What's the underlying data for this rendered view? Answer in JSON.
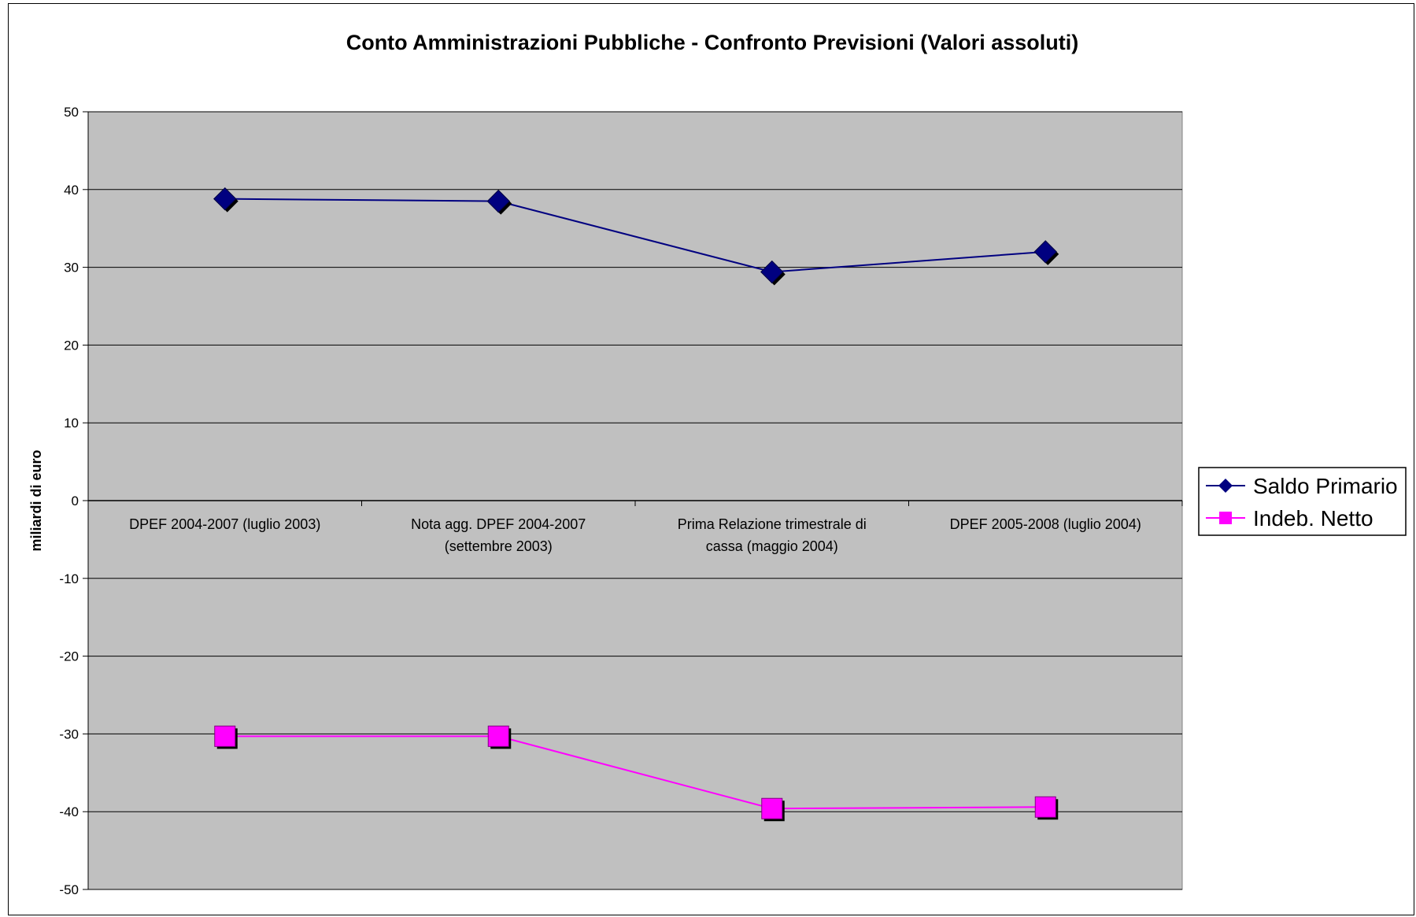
{
  "chart_data": {
    "type": "line",
    "title": "Conto Amministrazioni Pubbliche - Confronto Previsioni (Valori assoluti)",
    "xlabel": "",
    "ylabel": "miliardi di euro",
    "ylim": [
      -50,
      50
    ],
    "yticks": [
      50,
      40,
      30,
      20,
      10,
      0,
      -10,
      -20,
      -30,
      -40,
      -50
    ],
    "grid": true,
    "plot_background": "#c0c0c0",
    "legend_position": "right",
    "categories": [
      [
        "DPEF 2004-2007 (luglio 2003)"
      ],
      [
        "Nota agg. DPEF 2004-2007",
        "(settembre 2003)"
      ],
      [
        "Prima Relazione trimestrale di",
        "cassa (maggio 2004)"
      ],
      [
        "DPEF 2005-2008 (luglio 2004)"
      ]
    ],
    "series": [
      {
        "name": "Saldo Primario",
        "values": [
          38.8,
          38.5,
          29.4,
          32.0
        ],
        "color": "#000080",
        "marker": "diamond"
      },
      {
        "name": "Indeb. Netto",
        "values": [
          -30.3,
          -30.3,
          -39.6,
          -39.4
        ],
        "color": "#ff00ff",
        "marker": "square"
      }
    ]
  }
}
